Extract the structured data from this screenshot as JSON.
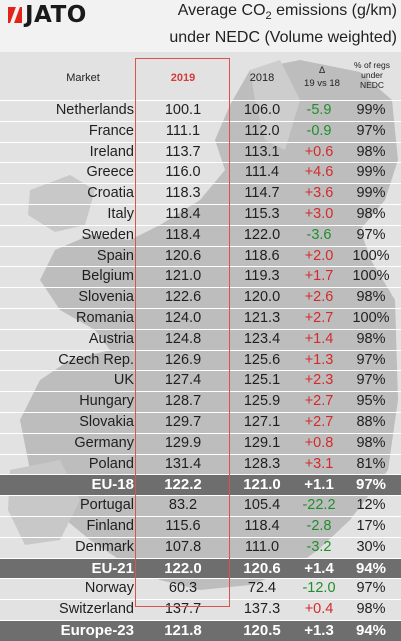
{
  "header": {
    "logo_text": "JATO",
    "title_line1_a": "Average CO",
    "title_line1_sub": "2",
    "title_line1_b": " emissions (g/km)",
    "title_line2": "under NEDC (Volume weighted)"
  },
  "columns": {
    "market": "Market",
    "y2019": "2019",
    "y2018": "2018",
    "delta_symbol": "Δ",
    "delta_label": "19 vs 18",
    "share_line1": "% of regs",
    "share_line2": "under",
    "share_line3": "NEDC"
  },
  "colors": {
    "highlight_2019": "#d9534f",
    "increase": "#d42a2a",
    "decrease": "#1f8f2c",
    "aggregate_row": "#6e6e6e"
  },
  "chart_data": {
    "type": "table",
    "title": "Average CO2 emissions (g/km) under NEDC (Volume weighted)",
    "columns": [
      "Market",
      "2019",
      "2018",
      "Δ 19 vs 18",
      "% of regs under NEDC"
    ],
    "rows": [
      {
        "market": "Netherlands",
        "y2019": "100.1",
        "y2018": "106.0",
        "delta": "-5.9",
        "share": "99%",
        "aggregate": false
      },
      {
        "market": "France",
        "y2019": "111.1",
        "y2018": "112.0",
        "delta": "-0.9",
        "share": "97%",
        "aggregate": false
      },
      {
        "market": "Ireland",
        "y2019": "113.7",
        "y2018": "113.1",
        "delta": "+0.6",
        "share": "98%",
        "aggregate": false
      },
      {
        "market": "Greece",
        "y2019": "116.0",
        "y2018": "111.4",
        "delta": "+4.6",
        "share": "99%",
        "aggregate": false
      },
      {
        "market": "Croatia",
        "y2019": "118.3",
        "y2018": "114.7",
        "delta": "+3.6",
        "share": "99%",
        "aggregate": false
      },
      {
        "market": "Italy",
        "y2019": "118.4",
        "y2018": "115.3",
        "delta": "+3.0",
        "share": "98%",
        "aggregate": false
      },
      {
        "market": "Sweden",
        "y2019": "118.4",
        "y2018": "122.0",
        "delta": "-3.6",
        "share": "97%",
        "aggregate": false
      },
      {
        "market": "Spain",
        "y2019": "120.6",
        "y2018": "118.6",
        "delta": "+2.0",
        "share": "100%",
        "aggregate": false
      },
      {
        "market": "Belgium",
        "y2019": "121.0",
        "y2018": "119.3",
        "delta": "+1.7",
        "share": "100%",
        "aggregate": false
      },
      {
        "market": "Slovenia",
        "y2019": "122.6",
        "y2018": "120.0",
        "delta": "+2.6",
        "share": "98%",
        "aggregate": false
      },
      {
        "market": "Romania",
        "y2019": "124.0",
        "y2018": "121.3",
        "delta": "+2.7",
        "share": "100%",
        "aggregate": false
      },
      {
        "market": "Austria",
        "y2019": "124.8",
        "y2018": "123.4",
        "delta": "+1.4",
        "share": "98%",
        "aggregate": false
      },
      {
        "market": "Czech Rep.",
        "y2019": "126.9",
        "y2018": "125.6",
        "delta": "+1.3",
        "share": "97%",
        "aggregate": false
      },
      {
        "market": "UK",
        "y2019": "127.4",
        "y2018": "125.1",
        "delta": "+2.3",
        "share": "97%",
        "aggregate": false
      },
      {
        "market": "Hungary",
        "y2019": "128.7",
        "y2018": "125.9",
        "delta": "+2.7",
        "share": "95%",
        "aggregate": false
      },
      {
        "market": "Slovakia",
        "y2019": "129.7",
        "y2018": "127.1",
        "delta": "+2.7",
        "share": "88%",
        "aggregate": false
      },
      {
        "market": "Germany",
        "y2019": "129.9",
        "y2018": "129.1",
        "delta": "+0.8",
        "share": "98%",
        "aggregate": false
      },
      {
        "market": "Poland",
        "y2019": "131.4",
        "y2018": "128.3",
        "delta": "+3.1",
        "share": "81%",
        "aggregate": false
      },
      {
        "market": "EU-18",
        "y2019": "122.2",
        "y2018": "121.0",
        "delta": "+1.1",
        "share": "97%",
        "aggregate": true
      },
      {
        "market": "Portugal",
        "y2019": "83.2",
        "y2018": "105.4",
        "delta": "-22.2",
        "share": "12%",
        "aggregate": false
      },
      {
        "market": "Finland",
        "y2019": "115.6",
        "y2018": "118.4",
        "delta": "-2.8",
        "share": "17%",
        "aggregate": false
      },
      {
        "market": "Denmark",
        "y2019": "107.8",
        "y2018": "111.0",
        "delta": "-3.2",
        "share": "30%",
        "aggregate": false
      },
      {
        "market": "EU-21",
        "y2019": "122.0",
        "y2018": "120.6",
        "delta": "+1.4",
        "share": "94%",
        "aggregate": true
      },
      {
        "market": "Norway",
        "y2019": "60.3",
        "y2018": "72.4",
        "delta": "-12.0",
        "share": "97%",
        "aggregate": false
      },
      {
        "market": "Switzerland",
        "y2019": "137.7",
        "y2018": "137.3",
        "delta": "+0.4",
        "share": "98%",
        "aggregate": false
      },
      {
        "market": "Europe-23",
        "y2019": "121.8",
        "y2018": "120.5",
        "delta": "+1.3",
        "share": "94%",
        "aggregate": true
      }
    ]
  }
}
